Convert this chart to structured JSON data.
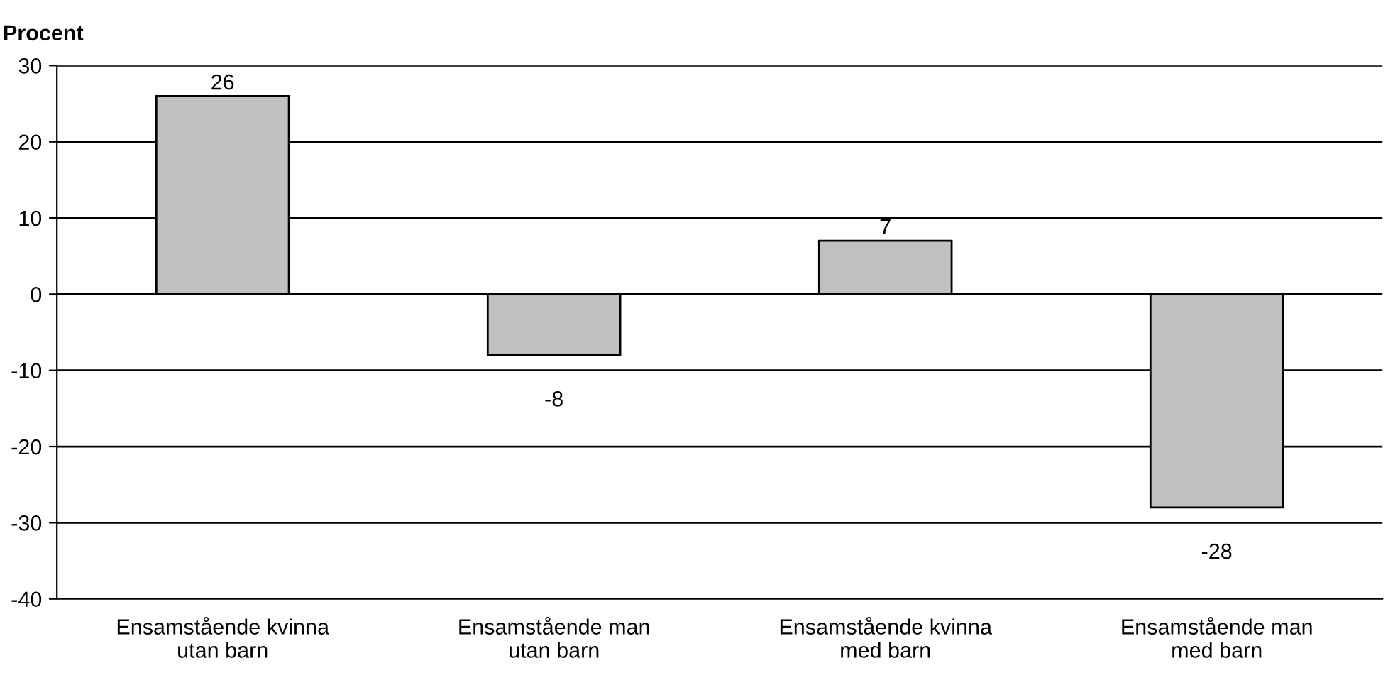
{
  "chart_data": {
    "type": "bar",
    "ylabel": "Procent",
    "categories": [
      "Ensamstående kvinna\nutan barn",
      "Ensamstående man\nutan barn",
      "Ensamstående kvinna\nmed barn",
      "Ensamstående man\nmed barn"
    ],
    "values": [
      26,
      -8,
      7,
      -28
    ],
    "color": "#c0c0c0",
    "ylim": [
      -40,
      30
    ],
    "yticks": [
      -40,
      -30,
      -20,
      -10,
      0,
      10,
      20,
      30
    ],
    "grid": "y",
    "data_labels": true,
    "legend": false
  }
}
